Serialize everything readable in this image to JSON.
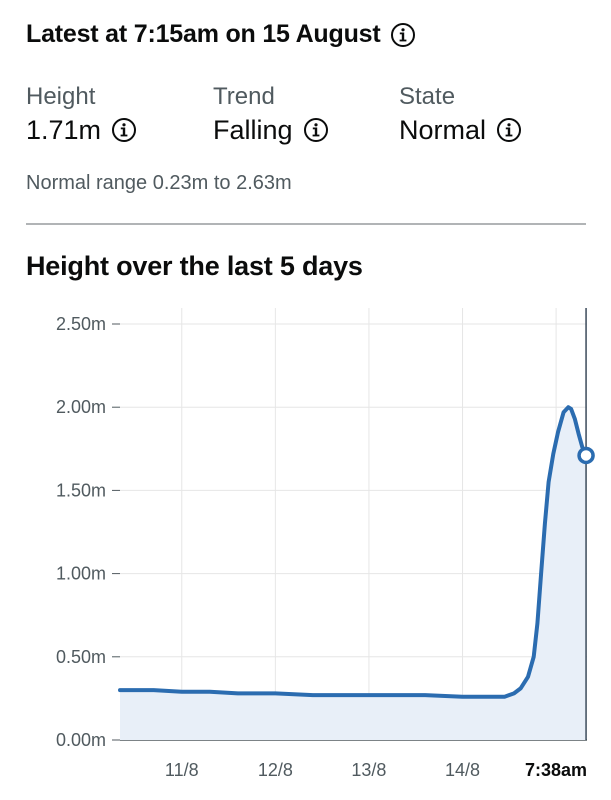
{
  "header": {
    "latest": "Latest at 7:15am on 15 August",
    "info_icon": "info-icon"
  },
  "metrics": [
    {
      "label": "Height",
      "value": "1.71m"
    },
    {
      "label": "Trend",
      "value": "Falling"
    },
    {
      "label": "State",
      "value": "Normal"
    }
  ],
  "normal_range": "Normal range 0.23m to 2.63m",
  "colors": {
    "line": "#2b6cb0",
    "fill": "#e8eff8",
    "grid": "#e6e6e6",
    "now_line": "#3b4a5a"
  },
  "chart_data": {
    "type": "area",
    "title": "Height over the last 5 days",
    "ylim": [
      0,
      2.5
    ],
    "y_ticks": [
      {
        "value": 0.0,
        "label": "0.00m"
      },
      {
        "value": 0.5,
        "label": "0.50m"
      },
      {
        "value": 1.0,
        "label": "1.00m"
      },
      {
        "value": 1.5,
        "label": "1.50m"
      },
      {
        "value": 2.0,
        "label": "2.00m"
      },
      {
        "value": 2.5,
        "label": "2.50m"
      }
    ],
    "x_unit": "days since start of 11 August",
    "xlim": [
      -0.66,
      4.33
    ],
    "x_ticks": [
      {
        "value": 0,
        "label": "11/8"
      },
      {
        "value": 1,
        "label": "12/8"
      },
      {
        "value": 2,
        "label": "13/8"
      },
      {
        "value": 3,
        "label": "14/8"
      },
      {
        "value": 4.32,
        "label": "7:38am",
        "bold": true
      }
    ],
    "now_x": 4.32,
    "latest_point": {
      "x": 4.32,
      "y": 1.71
    },
    "series": [
      {
        "x": [
          -0.66,
          -0.3,
          0.0,
          0.3,
          0.6,
          1.0,
          1.4,
          1.8,
          2.2,
          2.6,
          3.0,
          3.3,
          3.45,
          3.55,
          3.62,
          3.7,
          3.76,
          3.8,
          3.84,
          3.88,
          3.92,
          3.97,
          4.02,
          4.08,
          4.13,
          4.16,
          4.2,
          4.24,
          4.28,
          4.32
        ],
        "y": [
          0.3,
          0.3,
          0.29,
          0.29,
          0.28,
          0.28,
          0.27,
          0.27,
          0.27,
          0.27,
          0.26,
          0.26,
          0.26,
          0.28,
          0.31,
          0.38,
          0.5,
          0.7,
          1.0,
          1.3,
          1.55,
          1.72,
          1.85,
          1.97,
          2.0,
          1.99,
          1.93,
          1.84,
          1.76,
          1.71
        ]
      }
    ]
  }
}
